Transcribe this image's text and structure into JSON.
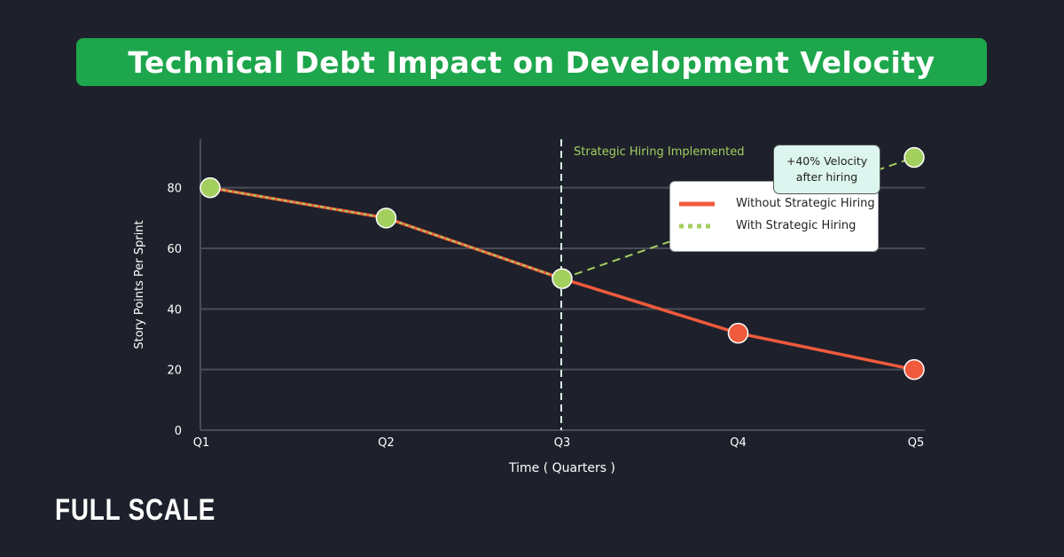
{
  "chart_data": {
    "type": "line",
    "title": "Technical Debt Impact on Development Velocity",
    "xlabel": "Time ( Quarters  )",
    "ylabel": "Story Points Per Sprint",
    "categories": [
      "Q1",
      "Q2",
      "Q3",
      "Q4",
      "Q5"
    ],
    "ylim": [
      0,
      96
    ],
    "yticks": [
      0,
      20,
      40,
      60,
      80
    ],
    "grid": true,
    "legend_position": "top-right",
    "series": [
      {
        "name": "Without Strategic Hiring",
        "values": [
          80,
          70,
          50,
          32,
          20
        ],
        "color": "#f05a3c",
        "style": "solid"
      },
      {
        "name": "With Strategic Hiring",
        "values": [
          80,
          70,
          50,
          null,
          90
        ],
        "color": "#a3cf5f",
        "style": "dotted"
      }
    ],
    "annotations": {
      "vline_label": "Strategic Hiring Implemented",
      "vline_at": "Q3",
      "callout": [
        "+40% Velocity",
        "after hiring"
      ]
    }
  },
  "brand": {
    "logo_text": "FULL SCALE"
  },
  "colors": {
    "background": "#1e212b",
    "title_bg": "#1ea64c",
    "grid": "#4a4d57"
  }
}
